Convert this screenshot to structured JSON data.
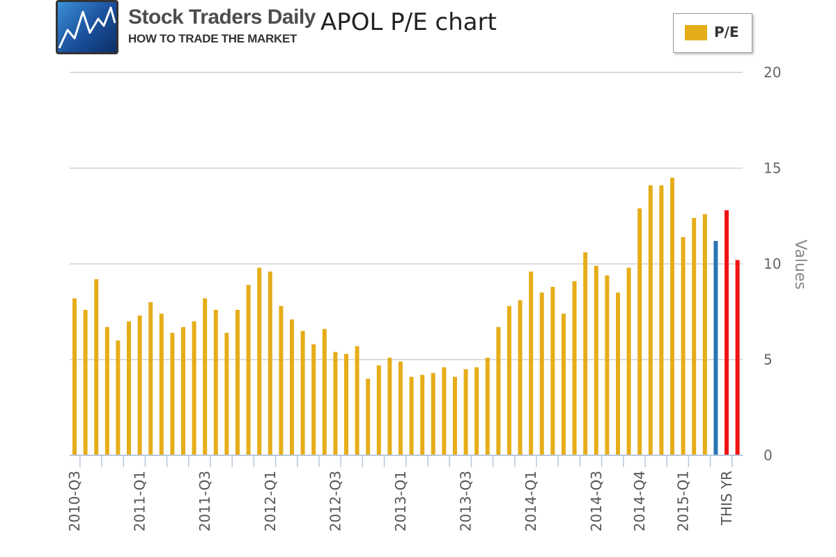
{
  "logo": {
    "brand": "Stock Traders Daily",
    "tagline": "HOW TO TRADE THE MARKET"
  },
  "chart_data": {
    "type": "bar",
    "title": "APOL P/E chart",
    "ylabel": "Values",
    "xlabel": "",
    "ylim": [
      0,
      20
    ],
    "yticks": [
      0,
      5,
      10,
      15,
      20
    ],
    "grid": true,
    "legend": {
      "placement": "top-right",
      "entries": [
        "P/E"
      ]
    },
    "colors": {
      "default": "#e6ad1a",
      "blue": "#2a75b3",
      "red": "#f01414"
    },
    "x_tick_labels": [
      {
        "index": 0,
        "label": "2010-Q3"
      },
      {
        "index": 6,
        "label": "2011-Q1"
      },
      {
        "index": 12,
        "label": "2011-Q3"
      },
      {
        "index": 18,
        "label": "2012-Q1"
      },
      {
        "index": 24,
        "label": "2012-Q3"
      },
      {
        "index": 30,
        "label": "2013-Q1"
      },
      {
        "index": 36,
        "label": "2013-Q3"
      },
      {
        "index": 42,
        "label": "2014-Q1"
      },
      {
        "index": 48,
        "label": "2014-Q3"
      },
      {
        "index": 52,
        "label": "2014-Q4"
      },
      {
        "index": 56,
        "label": "2015-Q1"
      },
      {
        "index": 60,
        "label": "THIS YR"
      }
    ],
    "series": [
      {
        "name": "P/E",
        "values": [
          8.2,
          7.6,
          9.2,
          6.7,
          6.0,
          7.0,
          7.3,
          8.0,
          7.4,
          6.4,
          6.7,
          7.0,
          8.2,
          7.6,
          6.4,
          7.6,
          8.9,
          9.8,
          9.6,
          7.8,
          7.1,
          6.5,
          5.8,
          6.6,
          5.4,
          5.3,
          5.7,
          4.0,
          4.7,
          5.1,
          4.9,
          4.1,
          4.2,
          4.3,
          4.6,
          4.1,
          4.5,
          4.6,
          5.1,
          6.7,
          7.8,
          8.1,
          9.6,
          8.5,
          8.8,
          7.4,
          9.1,
          10.6,
          9.9,
          9.4,
          8.5,
          9.8,
          12.9,
          14.1,
          14.1,
          14.5,
          11.4,
          12.4,
          12.6,
          11.2,
          12.8,
          10.2
        ],
        "bar_colors": {
          "59": "blue",
          "60": "red",
          "61": "red"
        }
      }
    ]
  }
}
